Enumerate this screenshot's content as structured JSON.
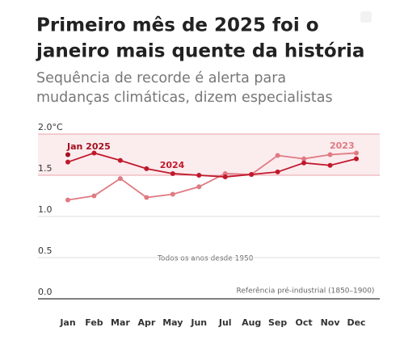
{
  "chart_data": {
    "type": "line",
    "title": [
      "Primeiro mês de 2025 foi o",
      "janeiro mais quente da história"
    ],
    "subtitle": [
      "Sequência de recorde é alerta para",
      "mudanças climáticas, dizem especialistas"
    ],
    "categories": [
      "Jan",
      "Feb",
      "Mar",
      "Apr",
      "May",
      "Jun",
      "Jul",
      "Aug",
      "Sep",
      "Oct",
      "Nov",
      "Dec"
    ],
    "series": [
      {
        "name": "2023",
        "color": "#e07a82",
        "values": [
          1.2,
          1.25,
          1.46,
          1.23,
          1.27,
          1.36,
          1.52,
          1.51,
          1.74,
          1.7,
          1.75,
          1.77
        ]
      },
      {
        "name": "2024",
        "color": "#c0192b",
        "values": [
          1.66,
          1.77,
          1.68,
          1.58,
          1.52,
          1.5,
          1.48,
          1.51,
          1.54,
          1.65,
          1.62,
          1.7
        ]
      },
      {
        "name": "Jan 2025",
        "color": "#a3101f",
        "values": [
          1.75,
          null,
          null,
          null,
          null,
          null,
          null,
          null,
          null,
          null,
          null,
          null
        ]
      }
    ],
    "annotations": [
      "Todos os anos desde 1950",
      "Referência pré-industrial (1850–1900)"
    ],
    "ylim": [
      0,
      2
    ],
    "yticks": [
      {
        "value": 0,
        "label": "0.0"
      },
      {
        "value": 0.5,
        "label": "0.5"
      },
      {
        "value": 1,
        "label": "1.0"
      },
      {
        "value": 1.5,
        "label": "1.5"
      },
      {
        "value": 2,
        "label": "2.0°C"
      }
    ],
    "grid": true
  }
}
